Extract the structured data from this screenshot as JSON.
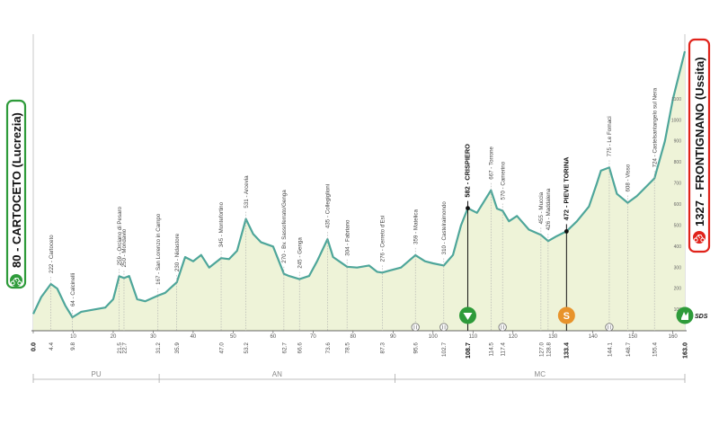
{
  "start": {
    "label": "80 - CARTOCETO (Lucrezia)",
    "color": "#2e9b3a"
  },
  "finish": {
    "label": "1327 - FRONTIGNANO (Ussita)",
    "color": "#e0231b"
  },
  "colors": {
    "line": "#4ea69a",
    "fill": "#eef3d8",
    "sprint": "#2e9b3a",
    "gpm": "#e8932b"
  },
  "sprint_label": "SDS",
  "feed_label": "S",
  "chart_data": {
    "type": "area",
    "xlim": [
      0,
      163
    ],
    "ylim": [
      0,
      1400
    ],
    "x_ticks": [
      0,
      10,
      20,
      30,
      40,
      50,
      60,
      70,
      80,
      90,
      100,
      110,
      120,
      130,
      140,
      150,
      160
    ],
    "alt_ticks": [
      100,
      200,
      300,
      400,
      500,
      600,
      700,
      800,
      900,
      1000,
      1100
    ],
    "profile": [
      [
        0,
        80
      ],
      [
        2,
        160
      ],
      [
        4.4,
        222
      ],
      [
        6,
        200
      ],
      [
        8,
        120
      ],
      [
        9.8,
        64
      ],
      [
        12,
        90
      ],
      [
        15,
        100
      ],
      [
        18,
        110
      ],
      [
        20,
        150
      ],
      [
        21.5,
        259
      ],
      [
        22.7,
        250
      ],
      [
        24,
        260
      ],
      [
        26,
        150
      ],
      [
        28,
        140
      ],
      [
        31.2,
        167
      ],
      [
        33,
        180
      ],
      [
        35.9,
        230
      ],
      [
        38,
        350
      ],
      [
        40,
        330
      ],
      [
        42,
        360
      ],
      [
        44,
        300
      ],
      [
        47,
        345
      ],
      [
        49,
        340
      ],
      [
        51,
        380
      ],
      [
        53.2,
        531
      ],
      [
        55,
        460
      ],
      [
        57,
        420
      ],
      [
        60,
        400
      ],
      [
        62.7,
        270
      ],
      [
        64,
        260
      ],
      [
        66.6,
        245
      ],
      [
        69,
        260
      ],
      [
        71,
        330
      ],
      [
        73.6,
        435
      ],
      [
        75,
        350
      ],
      [
        78.5,
        304
      ],
      [
        81,
        300
      ],
      [
        84,
        310
      ],
      [
        86,
        280
      ],
      [
        87.3,
        276
      ],
      [
        89,
        285
      ],
      [
        92,
        300
      ],
      [
        95.6,
        359
      ],
      [
        98,
        330
      ],
      [
        100,
        320
      ],
      [
        102.7,
        310
      ],
      [
        105,
        360
      ],
      [
        107,
        500
      ],
      [
        108.7,
        582
      ],
      [
        111,
        560
      ],
      [
        114.5,
        667
      ],
      [
        116,
        580
      ],
      [
        117.4,
        570
      ],
      [
        119,
        520
      ],
      [
        121,
        545
      ],
      [
        124,
        480
      ],
      [
        127,
        455
      ],
      [
        128.8,
        426
      ],
      [
        131,
        450
      ],
      [
        133.4,
        472
      ],
      [
        136,
        520
      ],
      [
        139,
        590
      ],
      [
        141,
        700
      ],
      [
        142,
        760
      ],
      [
        144.1,
        775
      ],
      [
        146,
        650
      ],
      [
        148.7,
        608
      ],
      [
        151,
        640
      ],
      [
        155.4,
        724
      ],
      [
        158,
        900
      ],
      [
        160,
        1100
      ],
      [
        163,
        1327
      ]
    ],
    "locations": [
      {
        "km": 4.4,
        "alt": 222,
        "name": "Cartoceto"
      },
      {
        "km": 9.8,
        "alt": 64,
        "name": "Calcinelli"
      },
      {
        "km": 21.5,
        "alt": 259,
        "name": "Orciano di Pesaro"
      },
      {
        "km": 22.7,
        "alt": 250,
        "name": "Mondavio"
      },
      {
        "km": 31.2,
        "alt": 167,
        "name": "San Lorenzo in Campo"
      },
      {
        "km": 35.9,
        "alt": 230,
        "name": "Nidastore"
      },
      {
        "km": 47.0,
        "alt": 345,
        "name": "Montefortino"
      },
      {
        "km": 53.2,
        "alt": 531,
        "name": "Arcevia"
      },
      {
        "km": 62.7,
        "alt": 270,
        "name": "Bv. Sassoferrato/Genga"
      },
      {
        "km": 66.6,
        "alt": 245,
        "name": "Genga"
      },
      {
        "km": 73.6,
        "alt": 435,
        "name": "Collegiglioni"
      },
      {
        "km": 78.5,
        "alt": 304,
        "name": "Fabriano"
      },
      {
        "km": 87.3,
        "alt": 276,
        "name": "Cerreto d'Esi"
      },
      {
        "km": 95.6,
        "alt": 359,
        "name": "Matelica"
      },
      {
        "km": 102.7,
        "alt": 310,
        "name": "Castelraimondo"
      },
      {
        "km": 108.7,
        "alt": 582,
        "name": "CRISPIERO",
        "bold": true
      },
      {
        "km": 114.5,
        "alt": 667,
        "name": "Torrone"
      },
      {
        "km": 117.4,
        "alt": 570,
        "name": "Camerino"
      },
      {
        "km": 127.0,
        "alt": 455,
        "name": "Muccia"
      },
      {
        "km": 128.8,
        "alt": 426,
        "name": "Maddalena"
      },
      {
        "km": 133.4,
        "alt": 472,
        "name": "PIEVE TORINA",
        "bold": true
      },
      {
        "km": 144.1,
        "alt": 775,
        "name": "Le Fornaci"
      },
      {
        "km": 148.7,
        "alt": 608,
        "name": "Visso"
      },
      {
        "km": 155.4,
        "alt": 724,
        "name": "Castelsantangelo sul Nera"
      }
    ],
    "km_labels": [
      {
        "km": 0.0,
        "text": "0.0",
        "bold": true
      },
      {
        "km": 4.4,
        "text": "4.4"
      },
      {
        "km": 9.8,
        "text": "9.8"
      },
      {
        "km": 21.5,
        "text": "21.5"
      },
      {
        "km": 22.7,
        "text": "22.7"
      },
      {
        "km": 31.2,
        "text": "31.2"
      },
      {
        "km": 35.9,
        "text": "35.9"
      },
      {
        "km": 47.0,
        "text": "47.0"
      },
      {
        "km": 53.2,
        "text": "53.2"
      },
      {
        "km": 62.7,
        "text": "62.7"
      },
      {
        "km": 66.6,
        "text": "66.6"
      },
      {
        "km": 73.6,
        "text": "73.6"
      },
      {
        "km": 78.5,
        "text": "78.5"
      },
      {
        "km": 87.3,
        "text": "87.3"
      },
      {
        "km": 95.6,
        "text": "95.6"
      },
      {
        "km": 102.7,
        "text": "102.7"
      },
      {
        "km": 108.7,
        "text": "108.7",
        "bold": true
      },
      {
        "km": 114.5,
        "text": "114.5"
      },
      {
        "km": 117.4,
        "text": "117.4"
      },
      {
        "km": 127.0,
        "text": "127.0"
      },
      {
        "km": 128.8,
        "text": "128.8"
      },
      {
        "km": 133.4,
        "text": "133.4",
        "bold": true
      },
      {
        "km": 144.1,
        "text": "144.1"
      },
      {
        "km": 148.7,
        "text": "148.7"
      },
      {
        "km": 155.4,
        "text": "155.4"
      },
      {
        "km": 163.0,
        "text": "163.0",
        "bold": true
      }
    ],
    "regions": [
      {
        "name": "PU",
        "from": 0,
        "to": 31.5
      },
      {
        "name": "AN",
        "from": 31.5,
        "to": 90.5
      },
      {
        "name": "MC",
        "from": 90.5,
        "to": 163
      }
    ],
    "markers": [
      {
        "km": 95.6,
        "type": "small"
      },
      {
        "km": 102.7,
        "type": "small"
      },
      {
        "km": 108.7,
        "type": "sprint"
      },
      {
        "km": 117.4,
        "type": "small"
      },
      {
        "km": 133.4,
        "type": "gpm"
      },
      {
        "km": 144.1,
        "type": "small"
      },
      {
        "km": 163.0,
        "type": "finish"
      }
    ]
  }
}
